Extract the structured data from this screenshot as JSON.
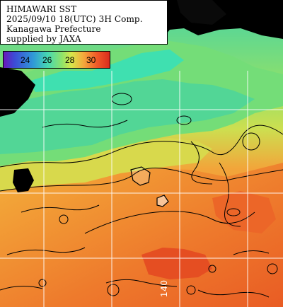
{
  "title_block": {
    "line1": "HIMAWARI SST",
    "line2": "2025/09/10 18(UTC) 3H Comp.",
    "line3": "Kanagawa Prefecture",
    "line4": "supplied by JAXA"
  },
  "legend": {
    "ticks": [
      "24",
      "26",
      "28",
      "30"
    ]
  },
  "grid": {
    "longitude_label": "140"
  },
  "colors": {
    "land": "#000000",
    "cold_water": "#49d29a",
    "mid_water": "#c8df4c",
    "warm_water": "#f2a03a",
    "hot_water": "#e8632a",
    "grid_line": "#ffffff"
  }
}
